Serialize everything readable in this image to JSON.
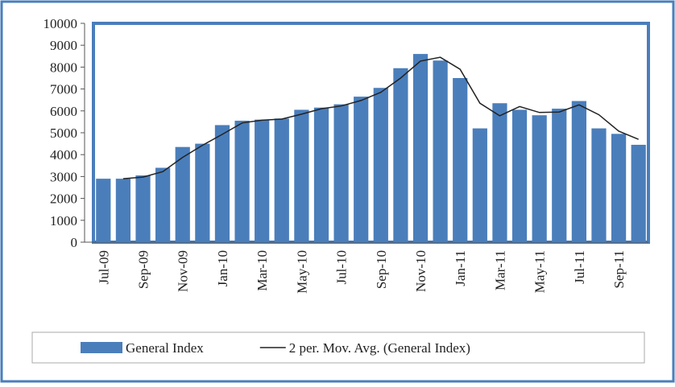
{
  "chart_data": {
    "type": "bar",
    "categories": [
      "Jul-09",
      null,
      "Sep-09",
      null,
      "Nov-09",
      null,
      "Jan-10",
      null,
      "Mar-10",
      null,
      "May-10",
      null,
      "Jul-10",
      null,
      "Sep-10",
      null,
      "Nov-10",
      null,
      "Jan-11",
      null,
      "Mar-11",
      null,
      "May-11",
      null,
      "Jul-11",
      null,
      "Sep-11",
      null
    ],
    "series": [
      {
        "name": "General Index",
        "type": "bar",
        "color": "#4a7ebb",
        "values": [
          2900,
          2900,
          3050,
          3400,
          4350,
          4500,
          5350,
          5550,
          5600,
          5650,
          6050,
          6150,
          6300,
          6650,
          7050,
          7950,
          8600,
          8300,
          7500,
          5200,
          6350,
          6050,
          5800,
          6100,
          6450,
          5200,
          4950,
          4450
        ]
      },
      {
        "name": "2 per. Mov. Avg. (General Index)",
        "type": "line",
        "color": "#222222",
        "values": [
          null,
          2900,
          2975,
          3225,
          3875,
          4425,
          4925,
          5450,
          5575,
          5625,
          5850,
          6100,
          6225,
          6475,
          6850,
          7500,
          8275,
          8450,
          7900,
          6350,
          5775,
          6200,
          5925,
          5950,
          6275,
          5825,
          5075,
          4700
        ]
      }
    ],
    "ylim": [
      0,
      10000
    ],
    "yticks": [
      0,
      1000,
      2000,
      3000,
      4000,
      5000,
      6000,
      7000,
      8000,
      9000,
      10000
    ],
    "legend": "bottom"
  }
}
